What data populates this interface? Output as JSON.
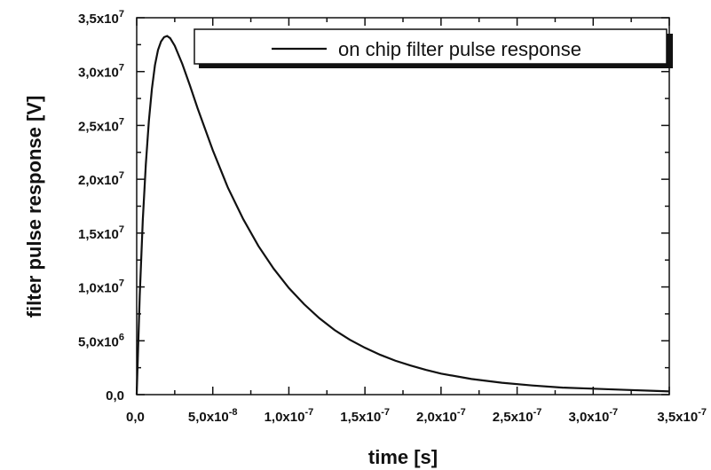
{
  "chart_data": {
    "type": "line",
    "title": "",
    "xlabel": "time [s]",
    "ylabel": "filter pulse response [V]",
    "xlim": [
      0,
      3.5e-07
    ],
    "ylim": [
      0,
      35000000.0
    ],
    "grid": false,
    "legend_position": "top-right",
    "x_ticks": [
      {
        "value": 0,
        "mant": "0,0",
        "exp": ""
      },
      {
        "value": 5e-08,
        "mant": "5,0x10",
        "exp": "-8"
      },
      {
        "value": 1e-07,
        "mant": "1,0x10",
        "exp": "-7"
      },
      {
        "value": 1.5e-07,
        "mant": "1,5x10",
        "exp": "-7"
      },
      {
        "value": 2e-07,
        "mant": "2,0x10",
        "exp": "-7"
      },
      {
        "value": 2.5e-07,
        "mant": "2,5x10",
        "exp": "-7"
      },
      {
        "value": 3e-07,
        "mant": "3,0x10",
        "exp": "-7"
      },
      {
        "value": 3.5e-07,
        "mant": "3,5x10",
        "exp": "-7"
      }
    ],
    "y_ticks": [
      {
        "value": 0,
        "mant": "0,0",
        "exp": ""
      },
      {
        "value": 5000000.0,
        "mant": "5,0x10",
        "exp": "6"
      },
      {
        "value": 10000000.0,
        "mant": "1,0x10",
        "exp": "7"
      },
      {
        "value": 15000000.0,
        "mant": "1,5x10",
        "exp": "7"
      },
      {
        "value": 20000000.0,
        "mant": "2,0x10",
        "exp": "7"
      },
      {
        "value": 25000000.0,
        "mant": "2,5x10",
        "exp": "7"
      },
      {
        "value": 30000000.0,
        "mant": "3,0x10",
        "exp": "7"
      },
      {
        "value": 35000000.0,
        "mant": "3,5x10",
        "exp": "7"
      }
    ],
    "series": [
      {
        "name": "on chip filter pulse response",
        "color": "#111111",
        "x": [
          0,
          2e-09,
          4e-09,
          6e-09,
          8e-09,
          1e-08,
          1.2e-08,
          1.4e-08,
          1.6e-08,
          1.8e-08,
          2e-08,
          2.2e-08,
          2.5e-08,
          3e-08,
          3.5e-08,
          4e-08,
          5e-08,
          6e-08,
          7e-08,
          8e-08,
          9e-08,
          1e-07,
          1.1e-07,
          1.2e-07,
          1.3e-07,
          1.4e-07,
          1.5e-07,
          1.6e-07,
          1.7e-07,
          1.8e-07,
          1.9e-07,
          2e-07,
          2.2e-07,
          2.4e-07,
          2.6e-07,
          2.8e-07,
          3e-07,
          3.2e-07,
          3.4e-07,
          3.5e-07
        ],
        "y": [
          0,
          9200000.0,
          16200000.0,
          21400000.0,
          25400000.0,
          28400000.0,
          30600000.0,
          32000000.0,
          32800000.0,
          33200000.0,
          33300000.0,
          33100000.0,
          32400000.0,
          30700000.0,
          28700000.0,
          26600000.0,
          22700000.0,
          19200000.0,
          16300000.0,
          13800000.0,
          11700000.0,
          9900000.0,
          8400000.0,
          7100000.0,
          6000000.0,
          5100000.0,
          4350000.0,
          3700000.0,
          3150000.0,
          2700000.0,
          2300000.0,
          1950000.0,
          1450000.0,
          1100000.0,
          850000.0,
          650000.0,
          550000.0,
          450000.0,
          350000.0,
          300000.0
        ]
      }
    ]
  }
}
